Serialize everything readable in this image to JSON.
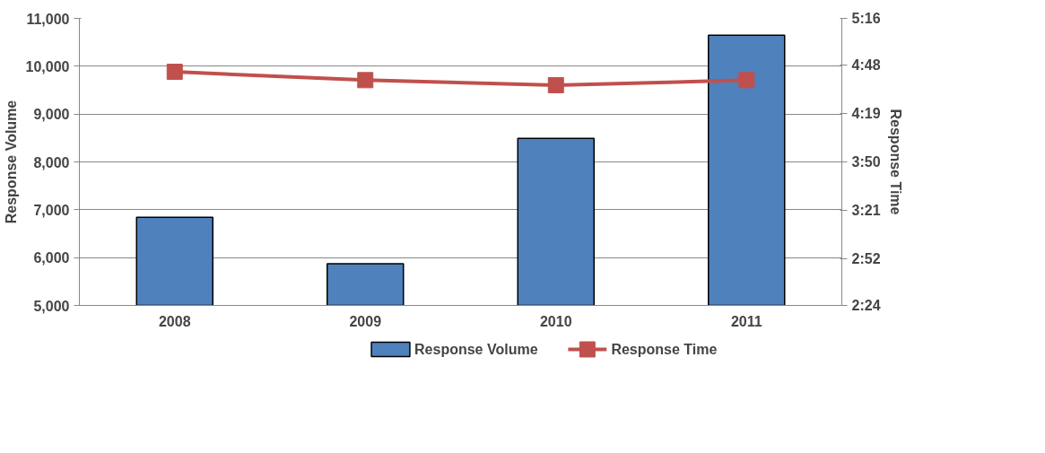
{
  "chart_data": {
    "type": "bar",
    "categories": [
      "2008",
      "2009",
      "2010",
      "2011"
    ],
    "ylabel": "Response Volume",
    "y2label": "Response Time",
    "ylim": [
      5000,
      11000
    ],
    "yticks": [
      {
        "value": 5000,
        "label": "5,000"
      },
      {
        "value": 6000,
        "label": "6,000"
      },
      {
        "value": 7000,
        "label": "7,000"
      },
      {
        "value": 8000,
        "label": "8,000"
      },
      {
        "value": 9000,
        "label": "9,000"
      },
      {
        "value": 10000,
        "label": "10,000"
      },
      {
        "value": 11000,
        "label": "11,000"
      }
    ],
    "y2lim": [
      144,
      316
    ],
    "y2ticks": [
      {
        "value": 144,
        "label": "2:24"
      },
      {
        "value": 172,
        "label": "2:52"
      },
      {
        "value": 201,
        "label": "3:21"
      },
      {
        "value": 230,
        "label": "3:50"
      },
      {
        "value": 259,
        "label": "4:19"
      },
      {
        "value": 288,
        "label": "4:48"
      },
      {
        "value": 316,
        "label": "5:16"
      }
    ],
    "grid": "y",
    "legend": "bottom",
    "series": [
      {
        "name": "Response Volume",
        "color": "#4f81bd",
        "values": [
          6840,
          5870,
          8490,
          10650
        ]
      },
      {
        "name": "Response Time",
        "type": "line",
        "axis": "y2",
        "color": "#c0504d",
        "marker": "square",
        "values": [
          284,
          279,
          276,
          279
        ]
      }
    ]
  }
}
